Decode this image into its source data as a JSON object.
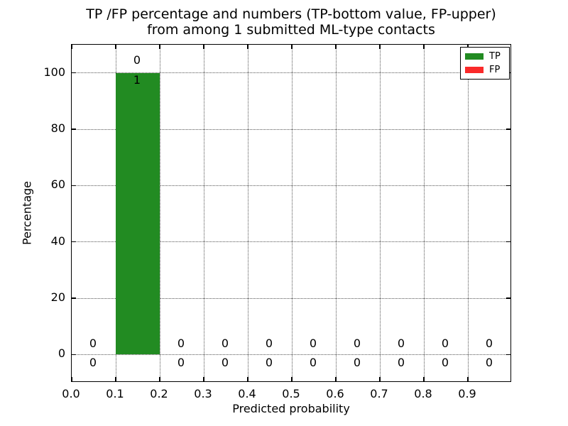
{
  "figure": {
    "title_line1": "TP /FP percentage and numbers (TP-bottom value, FP-upper)",
    "title_line2": "from among 1 submitted ML-type contacts",
    "background": "#ffffff"
  },
  "chart_data": {
    "type": "bar",
    "stacked": true,
    "title": "TP /FP percentage and numbers (TP-bottom value, FP-upper) from among 1 submitted ML-type contacts",
    "xlabel": "Predicted probability",
    "ylabel": "Percentage",
    "xlim": [
      0.0,
      1.0
    ],
    "ylim": [
      -10,
      110
    ],
    "x_ticks": [
      0.0,
      0.1,
      0.2,
      0.3,
      0.4,
      0.5,
      0.6,
      0.7,
      0.8,
      0.9
    ],
    "x_ticklabels": [
      "0.0",
      "0.1",
      "0.2",
      "0.3",
      "0.4",
      "0.5",
      "0.6",
      "0.7",
      "0.8",
      "0.9"
    ],
    "y_ticks": [
      0,
      20,
      40,
      60,
      80,
      100
    ],
    "y_ticklabels": [
      "0",
      "20",
      "40",
      "60",
      "80",
      "100"
    ],
    "grid": "dotted, both axes",
    "legend_position": "upper right",
    "bin_width": 0.1,
    "bin_centers": [
      0.05,
      0.15,
      0.25,
      0.35,
      0.45,
      0.55,
      0.65,
      0.75,
      0.85,
      0.95
    ],
    "series": [
      {
        "name": "TP",
        "color": "#228b22",
        "values": [
          0,
          100,
          0,
          0,
          0,
          0,
          0,
          0,
          0,
          0
        ],
        "counts": [
          0,
          1,
          0,
          0,
          0,
          0,
          0,
          0,
          0,
          0
        ]
      },
      {
        "name": "FP",
        "color": "#fa2a2a",
        "values": [
          0,
          0,
          0,
          0,
          0,
          0,
          0,
          0,
          0,
          0
        ],
        "counts": [
          0,
          0,
          0,
          0,
          0,
          0,
          0,
          0,
          0,
          0
        ]
      }
    ],
    "annotation_note": "count labels per bin: FP count upper, TP count bottom"
  }
}
